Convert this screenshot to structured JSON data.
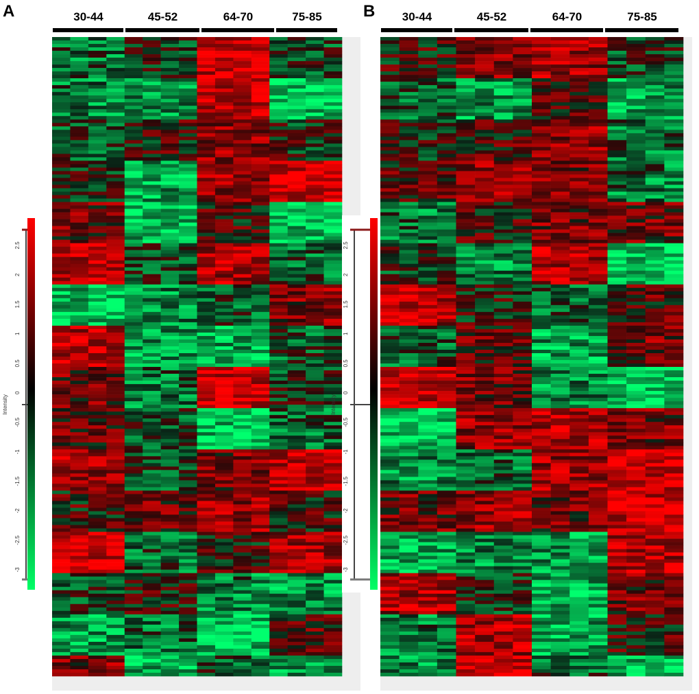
{
  "chart_data": [
    {
      "type": "heatmap",
      "panel_label": "A",
      "groups": [
        "30-44",
        "45-52",
        "64-70",
        "75-85"
      ],
      "columns_per_group": 4,
      "colorbar": {
        "label": "Intensity",
        "ticks": [
          "2.5",
          "2",
          "1.5",
          "1",
          "0.5",
          "0",
          "-0.5",
          "-1",
          "-1.5",
          "-2",
          "-2.5",
          "-3"
        ],
        "range": [
          -3.2,
          2.8
        ],
        "colors": {
          "low": "#00ff66",
          "mid": "#000000",
          "high": "#ff0000"
        }
      }
    },
    {
      "type": "heatmap",
      "panel_label": "B",
      "groups": [
        "30-44",
        "45-52",
        "64-70",
        "75-85"
      ],
      "columns_per_group": 4,
      "colorbar": {
        "label": "Intensity",
        "ticks": [
          "2.5",
          "2",
          "1.5",
          "1",
          "0.5",
          "0",
          "-0.5",
          "-1",
          "-1.5",
          "-2",
          "-2.5",
          "-3"
        ],
        "range": [
          -3.2,
          2.8
        ],
        "colors": {
          "low": "#00ff66",
          "mid": "#000000",
          "high": "#ff0000"
        }
      }
    }
  ]
}
